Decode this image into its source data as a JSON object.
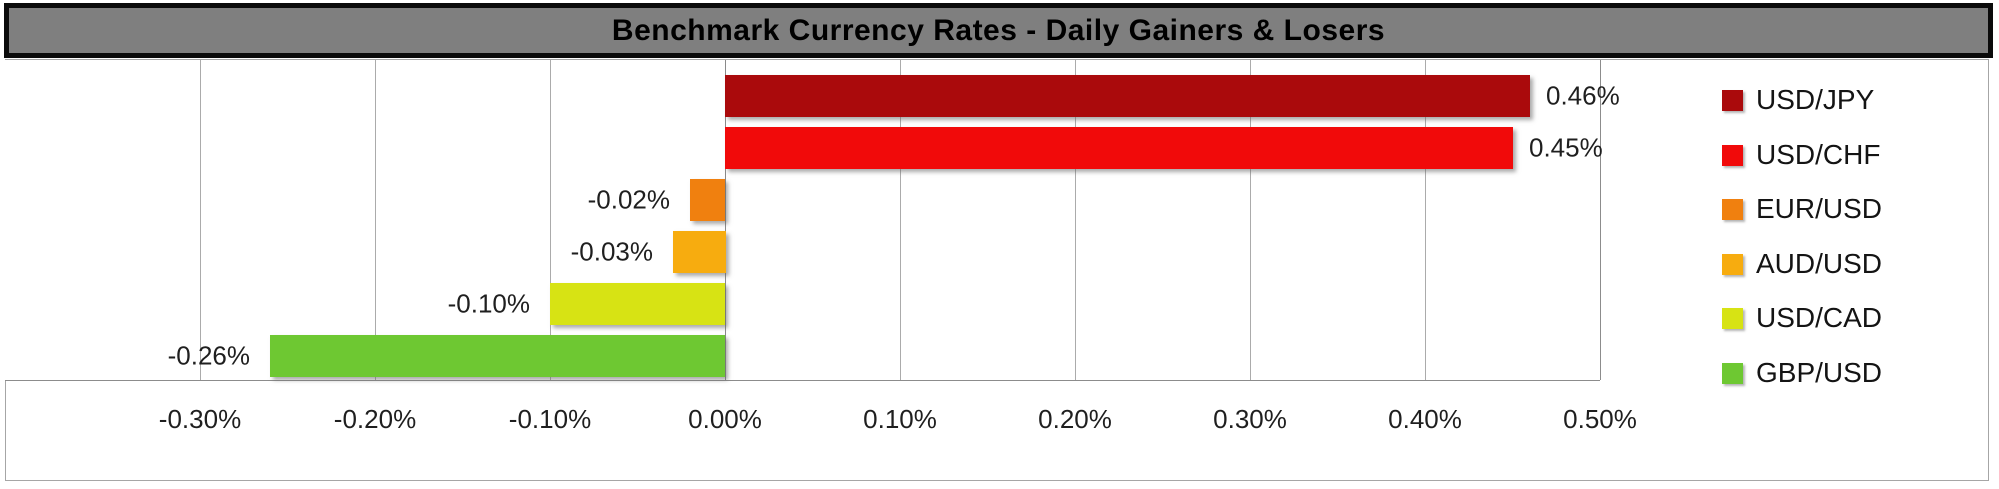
{
  "title_bar": {
    "text": "Benchmark Currency Rates - Daily Gainers & Losers"
  },
  "chart_data": {
    "type": "bar",
    "orientation": "horizontal",
    "title": "Benchmark Currency Rates - Daily Gainers & Losers",
    "xlabel": "",
    "ylabel": "",
    "categories": [
      "USD/JPY",
      "USD/CHF",
      "EUR/USD",
      "AUD/USD",
      "USD/CAD",
      "GBP/USD"
    ],
    "values": [
      0.46,
      0.45,
      -0.02,
      -0.03,
      -0.1,
      -0.26
    ],
    "data_labels": [
      "0.46%",
      "0.45%",
      "-0.02%",
      "-0.03%",
      "-0.10%",
      "-0.26%"
    ],
    "bar_colors": [
      "#aa0a0c",
      "#f10a0a",
      "#f0800f",
      "#f7ac0f",
      "#d7e314",
      "#6ec832"
    ],
    "xlim": [
      -0.41,
      0.5
    ],
    "x_tick_values": [
      -0.3,
      -0.2,
      -0.1,
      0.0,
      0.1,
      0.2,
      0.3,
      0.4,
      0.5
    ],
    "x_tick_labels": [
      "-0.30%",
      "-0.20%",
      "-0.10%",
      "0.00%",
      "0.10%",
      "0.20%",
      "0.30%",
      "0.40%",
      "0.50%"
    ],
    "grid": "vertical",
    "legend_position": "right",
    "legend_entries": [
      {
        "label": "USD/JPY",
        "color": "#aa0a0c"
      },
      {
        "label": "USD/CHF",
        "color": "#f10a0a"
      },
      {
        "label": "EUR/USD",
        "color": "#f0800f"
      },
      {
        "label": "AUD/USD",
        "color": "#f7ac0f"
      },
      {
        "label": "USD/CAD",
        "color": "#d7e314"
      },
      {
        "label": "GBP/USD",
        "color": "#6ec832"
      }
    ]
  },
  "styles": {
    "title_background": "#7f7f7f",
    "title_text_color": "#000000",
    "gridline_color": "#ababab",
    "axis_line_color": "#8c8c8c",
    "label_text_color": "#1f1f1f",
    "background": "#ffffff"
  }
}
